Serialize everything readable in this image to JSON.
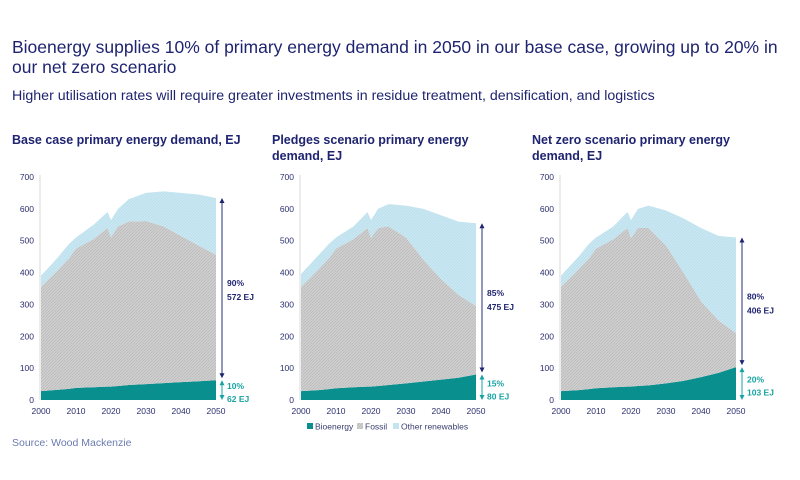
{
  "headline": "Bioenergy supplies 10% of primary energy demand in 2050 in our base case, growing up to 20% in our net zero scenario",
  "subtitle": "Higher utilisation rates will require greater investments in residue treatment, densification, and logistics",
  "source": "Source: Wood Mackenzie",
  "colors": {
    "bioenergy": "#0a8f8f",
    "fossil": "#c9c9c9",
    "other_renewables": "#c6e5f0",
    "text": "#1f2470",
    "fossil_annotation": "#1f2470",
    "bio_annotation": "#18a3a3"
  },
  "legend": [
    "Bioenergy",
    "Fossil",
    "Other renewables"
  ],
  "chart_data": [
    {
      "type": "area",
      "stacked": true,
      "title": "Base case primary energy demand, EJ",
      "ylim": [
        0,
        700
      ],
      "yticks": [
        0,
        100,
        200,
        300,
        400,
        500,
        600,
        700
      ],
      "xticks": [
        2000,
        2010,
        2020,
        2030,
        2040,
        2050
      ],
      "x": [
        2000,
        2005,
        2008,
        2010,
        2015,
        2019,
        2020,
        2022,
        2025,
        2030,
        2035,
        2040,
        2045,
        2050
      ],
      "series": [
        {
          "name": "Bioenergy",
          "values": [
            28,
            32,
            35,
            38,
            40,
            42,
            42,
            44,
            47,
            50,
            53,
            56,
            59,
            62
          ]
        },
        {
          "name": "Fossil",
          "values": [
            327,
            378,
            410,
            437,
            465,
            498,
            468,
            501,
            513,
            512,
            492,
            459,
            426,
            394
          ]
        },
        {
          "name": "Other renewables",
          "values": [
            35,
            40,
            45,
            35,
            45,
            50,
            55,
            55,
            70,
            88,
            110,
            135,
            160,
            178
          ]
        }
      ],
      "annotations": {
        "other_pct": "90%",
        "other_ej": "572 EJ",
        "bio_pct": "10%",
        "bio_ej": "62 EJ"
      }
    },
    {
      "type": "area",
      "stacked": true,
      "title": "Pledges scenario primary energy demand, EJ",
      "ylim": [
        0,
        700
      ],
      "yticks": [
        0,
        100,
        200,
        300,
        400,
        500,
        600,
        700
      ],
      "xticks": [
        2000,
        2010,
        2020,
        2030,
        2040,
        2050
      ],
      "x": [
        2000,
        2005,
        2008,
        2010,
        2015,
        2019,
        2020,
        2022,
        2025,
        2030,
        2035,
        2040,
        2045,
        2050
      ],
      "series": [
        {
          "name": "Bioenergy",
          "values": [
            28,
            31,
            34,
            37,
            40,
            42,
            42,
            44,
            47,
            52,
            58,
            64,
            70,
            80
          ]
        },
        {
          "name": "Fossil",
          "values": [
            327,
            379,
            411,
            438,
            465,
            498,
            466,
            496,
            498,
            458,
            382,
            316,
            260,
            215
          ]
        },
        {
          "name": "Other renewables",
          "values": [
            40,
            45,
            45,
            35,
            40,
            50,
            57,
            60,
            70,
            100,
            160,
            200,
            230,
            260
          ]
        }
      ],
      "annotations": {
        "other_pct": "85%",
        "other_ej": "475 EJ",
        "bio_pct": "15%",
        "bio_ej": "80 EJ"
      }
    },
    {
      "type": "area",
      "stacked": true,
      "title": "Net zero scenario primary energy demand, EJ",
      "ylim": [
        0,
        700
      ],
      "yticks": [
        0,
        100,
        200,
        300,
        400,
        500,
        600,
        700
      ],
      "xticks": [
        2000,
        2010,
        2020,
        2030,
        2040,
        2050
      ],
      "x": [
        2000,
        2005,
        2008,
        2010,
        2015,
        2019,
        2020,
        2022,
        2025,
        2030,
        2035,
        2040,
        2045,
        2050
      ],
      "series": [
        {
          "name": "Bioenergy",
          "values": [
            28,
            31,
            34,
            37,
            40,
            42,
            42,
            44,
            46,
            52,
            60,
            72,
            85,
            103
          ]
        },
        {
          "name": "Fossil",
          "values": [
            327,
            379,
            411,
            438,
            465,
            498,
            466,
            496,
            494,
            433,
            340,
            238,
            165,
            107
          ]
        },
        {
          "name": "Other renewables",
          "values": [
            35,
            40,
            45,
            35,
            40,
            50,
            57,
            60,
            70,
            110,
            170,
            230,
            265,
            300
          ]
        }
      ],
      "annotations": {
        "other_pct": "80%",
        "other_ej": "406 EJ",
        "bio_pct": "20%",
        "bio_ej": "103 EJ"
      }
    }
  ]
}
